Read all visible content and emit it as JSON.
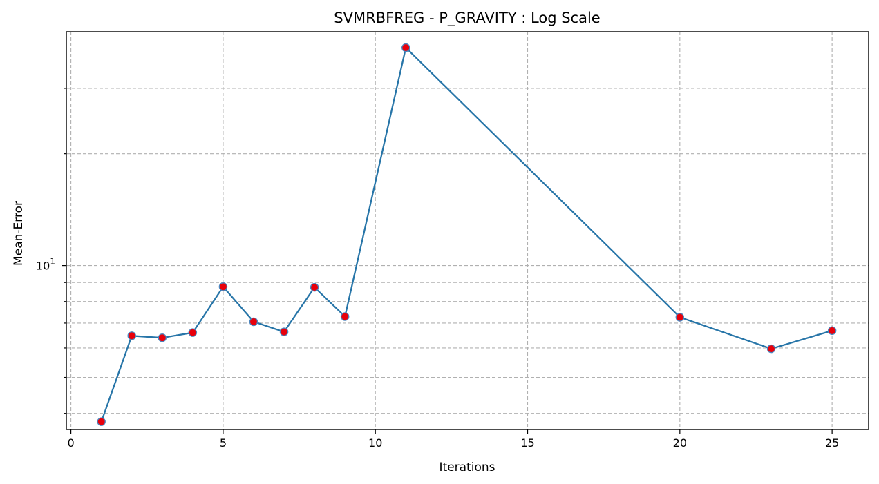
{
  "chart_data": {
    "type": "line",
    "title": "SVMRBFREG - P_GRAVITY : Log Scale",
    "xlabel": "Iterations",
    "ylabel": "Mean-Error",
    "y_scale": "log",
    "xlim": [
      -0.15,
      26.2
    ],
    "ylim": [
      3.62,
      42.6
    ],
    "grid": true,
    "x_ticks": [
      0,
      5,
      10,
      15,
      20,
      25
    ],
    "x_tick_labels": [
      "0",
      "5",
      "10",
      "15",
      "20",
      "25"
    ],
    "y_major_ticks": [
      10
    ],
    "y_major_tick_label": {
      "base": "10",
      "exponent": "1"
    },
    "y_minor_ticks": [
      4,
      5,
      6,
      7,
      8,
      9,
      20,
      30
    ],
    "series": [
      {
        "x": [
          1,
          2,
          3,
          4,
          5,
          6,
          7,
          8,
          9,
          11,
          20,
          23,
          25
        ],
        "y": [
          3.8,
          6.47,
          6.39,
          6.6,
          8.77,
          7.06,
          6.63,
          8.74,
          7.29,
          38.6,
          7.26,
          5.97,
          6.68
        ],
        "line_color": "#2775a8",
        "marker_fill": "#e8000b",
        "marker_edge": "#4d86bf"
      }
    ]
  }
}
